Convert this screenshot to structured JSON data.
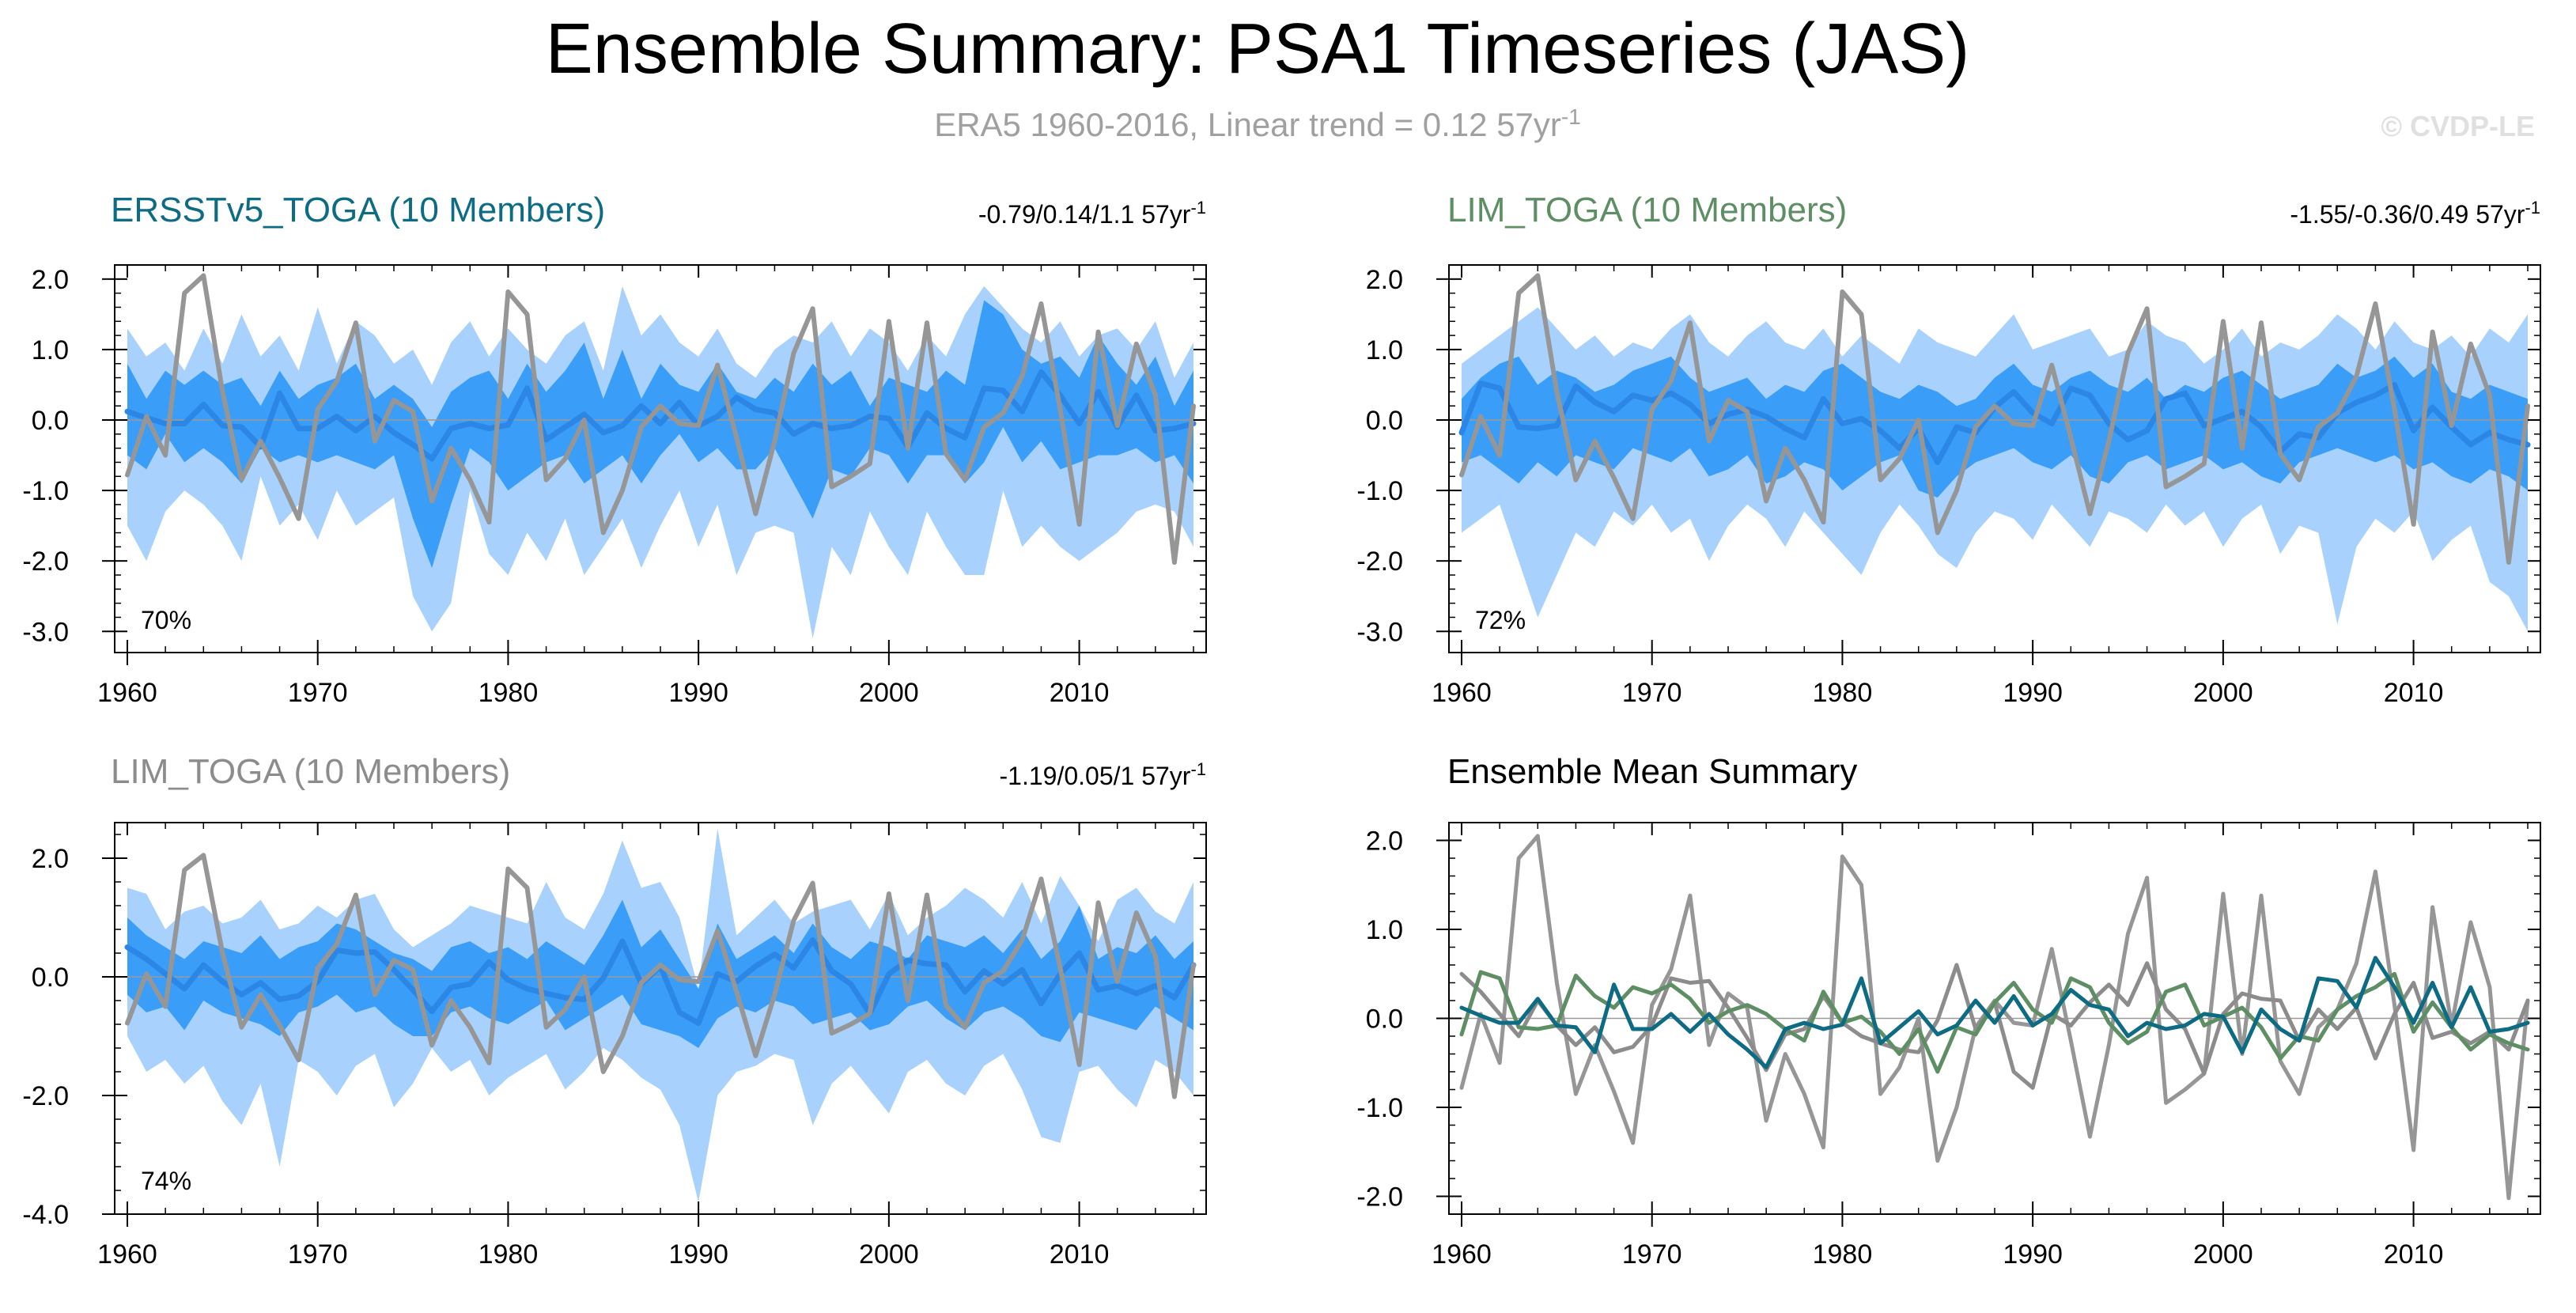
{
  "figure": {
    "title": "Ensemble Summary: PSA1 Timeseries (JAS)",
    "subtitle_main": "ERA5 1960-2016, Linear trend = 0.12 57yr",
    "subtitle_sup": "-1",
    "watermark": "© CVDP-LE"
  },
  "colors": {
    "band_outer": "#a8d2fd",
    "band_inner": "#3a9ef9",
    "ens_mean": "#2b86e6",
    "obs": "#969696",
    "ersst": "#0e6b84",
    "lim_green": "#5e8e63",
    "lim_gray": "#8c8c8c",
    "tick_text": "#000000"
  },
  "chart_data": [
    {
      "id": "ersst",
      "type": "area",
      "title": "ERSSTv5_TOGA (10 Members)",
      "title_color": "#0e6b84",
      "trend_main": "-0.79/0.14/1.1 57yr",
      "trend_sup": "-1",
      "pct": "70%",
      "years": [
        1960,
        2016
      ],
      "ylim": [
        -3.3,
        2.2
      ],
      "yticks": [
        2.0,
        1.0,
        0.0,
        -1.0,
        -2.0,
        -3.0
      ],
      "ytick_labels": [
        "2.0",
        "1.0",
        "0.0",
        "-1.0",
        "-2.0",
        "-3.0"
      ],
      "xticks": [
        1960,
        1970,
        1980,
        1990,
        2000,
        2010
      ],
      "xtick_labels": [
        "1960",
        "1970",
        "1980",
        "1990",
        "2000",
        "2010"
      ],
      "outer_upper": [
        1.3,
        0.9,
        1.1,
        0.7,
        1.3,
        0.8,
        1.5,
        0.9,
        1.2,
        0.7,
        1.6,
        0.8,
        1.4,
        1.2,
        0.8,
        1.0,
        0.5,
        1.1,
        1.4,
        0.9,
        1.3,
        1.0,
        0.8,
        1.2,
        1.4,
        0.7,
        1.9,
        1.2,
        1.5,
        1.1,
        0.9,
        1.3,
        0.8,
        0.6,
        1.0,
        1.2,
        1.1,
        1.4,
        0.9,
        1.3,
        1.1,
        0.7,
        1.2,
        0.9,
        1.5,
        1.9,
        1.6,
        1.3,
        1.1,
        1.4,
        0.9,
        1.2,
        1.3,
        1.0,
        1.4,
        0.6,
        1.1
      ],
      "outer_lower": [
        -1.5,
        -2.0,
        -1.3,
        -1.0,
        -1.2,
        -1.5,
        -2.0,
        -0.8,
        -1.5,
        -1.2,
        -1.7,
        -1.0,
        -1.5,
        -1.3,
        -1.1,
        -2.5,
        -3.0,
        -2.6,
        -1.0,
        -1.9,
        -2.2,
        -1.6,
        -2.0,
        -1.4,
        -2.2,
        -1.8,
        -1.4,
        -2.1,
        -1.5,
        -1.0,
        -1.8,
        -1.2,
        -2.2,
        -1.6,
        -1.5,
        -1.6,
        -3.1,
        -1.8,
        -2.2,
        -1.3,
        -1.8,
        -2.2,
        -1.3,
        -1.8,
        -2.2,
        -2.2,
        -1.0,
        -1.8,
        -1.5,
        -1.8,
        -2.0,
        -1.8,
        -1.6,
        -1.3,
        -1.2,
        -1.3,
        -1.8
      ],
      "inner_upper": [
        0.8,
        0.3,
        0.7,
        0.5,
        0.7,
        0.5,
        0.6,
        0.2,
        0.7,
        0.3,
        0.5,
        0.6,
        0.8,
        0.3,
        0.5,
        0.3,
        -0.1,
        0.4,
        0.6,
        0.7,
        0.3,
        0.8,
        0.4,
        0.7,
        1.1,
        0.3,
        1.0,
        0.3,
        0.8,
        0.5,
        0.4,
        0.8,
        0.4,
        0.3,
        0.6,
        0.4,
        0.8,
        0.5,
        0.7,
        0.2,
        0.6,
        0.5,
        0.4,
        0.7,
        0.5,
        1.7,
        1.5,
        1.0,
        0.8,
        0.9,
        0.6,
        1.2,
        0.8,
        0.5,
        0.9,
        0.2,
        0.7
      ],
      "inner_lower": [
        -0.5,
        -0.7,
        -0.2,
        -0.6,
        -0.4,
        -0.6,
        -0.9,
        -0.4,
        -0.6,
        -0.5,
        -0.6,
        -0.5,
        -0.6,
        -0.7,
        -0.5,
        -1.4,
        -2.1,
        -1.2,
        -0.4,
        -0.6,
        -1.0,
        -0.8,
        -0.6,
        -0.5,
        -0.9,
        -0.7,
        -0.5,
        -0.9,
        -0.5,
        -0.2,
        -0.6,
        -0.4,
        -0.7,
        -0.7,
        -0.4,
        -0.9,
        -1.4,
        -0.7,
        -0.8,
        -0.4,
        -0.5,
        -0.9,
        -0.5,
        -0.5,
        -0.9,
        -0.6,
        -0.1,
        -0.6,
        -0.3,
        -0.7,
        -0.6,
        -0.5,
        -0.5,
        -0.4,
        -0.6,
        -0.5,
        -0.9
      ],
      "ens_mean": [
        0.12,
        0.03,
        -0.05,
        -0.05,
        0.22,
        -0.08,
        -0.1,
        -0.38,
        0.38,
        -0.12,
        -0.12,
        0.05,
        -0.15,
        0.05,
        -0.18,
        -0.35,
        -0.55,
        -0.12,
        -0.05,
        -0.12,
        -0.07,
        0.45,
        -0.28,
        -0.1,
        0.08,
        -0.18,
        -0.08,
        0.2,
        -0.05,
        0.25,
        -0.08,
        0.05,
        0.32,
        0.15,
        0.1,
        -0.2,
        -0.05,
        -0.12,
        -0.08,
        0.05,
        0.02,
        -0.38,
        0.1,
        -0.12,
        -0.25,
        0.45,
        0.42,
        0.12,
        0.68,
        0.35,
        -0.05,
        0.4,
        -0.1,
        0.35,
        -0.15,
        -0.12,
        -0.05
      ]
    },
    {
      "id": "lim_green",
      "type": "area",
      "title": "LIM_TOGA (10 Members)",
      "title_color": "#5e8e63",
      "trend_main": "-1.55/-0.36/0.49 57yr",
      "trend_sup": "-1",
      "pct": "72%",
      "years": [
        1960,
        2016
      ],
      "ylim": [
        -3.3,
        2.2
      ],
      "yticks": [
        2.0,
        1.0,
        0.0,
        -1.0,
        -2.0,
        -3.0
      ],
      "ytick_labels": [
        "2.0",
        "1.0",
        "0.0",
        "-1.0",
        "-2.0",
        "-3.0"
      ],
      "xticks": [
        1960,
        1970,
        1980,
        1990,
        2000,
        2010
      ],
      "xtick_labels": [
        "1960",
        "1970",
        "1980",
        "1990",
        "2000",
        "2010"
      ],
      "outer_upper": [
        0.8,
        1.0,
        1.2,
        1.4,
        1.6,
        1.3,
        1.0,
        1.2,
        0.9,
        1.1,
        1.0,
        1.3,
        1.5,
        1.1,
        0.9,
        1.2,
        1.4,
        1.1,
        1.0,
        1.3,
        0.9,
        1.2,
        1.0,
        0.8,
        1.3,
        1.1,
        1.0,
        0.9,
        1.2,
        1.5,
        1.0,
        1.1,
        1.2,
        1.3,
        0.9,
        1.0,
        1.4,
        1.2,
        1.1,
        0.8,
        1.0,
        1.3,
        0.9,
        1.1,
        1.0,
        1.2,
        1.5,
        1.3,
        1.0,
        1.4,
        1.1,
        1.0,
        1.2,
        0.9,
        1.3,
        1.1,
        1.5
      ],
      "outer_lower": [
        -1.6,
        -1.4,
        -1.2,
        -2.0,
        -2.8,
        -2.2,
        -1.6,
        -1.8,
        -1.3,
        -1.5,
        -1.2,
        -1.6,
        -1.4,
        -2.0,
        -1.5,
        -1.2,
        -1.4,
        -1.8,
        -1.3,
        -1.6,
        -1.9,
        -2.2,
        -1.6,
        -1.2,
        -1.5,
        -1.9,
        -2.1,
        -1.6,
        -1.3,
        -1.4,
        -1.7,
        -1.2,
        -1.5,
        -1.8,
        -1.3,
        -1.4,
        -1.6,
        -1.2,
        -1.5,
        -1.3,
        -1.8,
        -1.4,
        -1.2,
        -1.9,
        -1.5,
        -1.6,
        -2.9,
        -1.8,
        -1.4,
        -1.6,
        -1.3,
        -2.0,
        -1.7,
        -1.5,
        -2.3,
        -2.5,
        -3.0
      ],
      "inner_upper": [
        0.3,
        0.6,
        0.8,
        0.9,
        0.5,
        0.7,
        0.6,
        0.4,
        0.5,
        0.7,
        0.8,
        0.9,
        0.6,
        0.4,
        0.5,
        0.6,
        0.3,
        0.5,
        0.4,
        0.7,
        0.8,
        0.6,
        0.4,
        0.3,
        0.5,
        0.4,
        0.2,
        0.3,
        0.6,
        0.8,
        0.5,
        0.4,
        0.6,
        0.7,
        0.5,
        0.4,
        0.6,
        0.3,
        0.5,
        0.4,
        0.6,
        0.7,
        0.5,
        0.3,
        0.4,
        0.5,
        0.8,
        0.6,
        0.7,
        0.9,
        0.6,
        0.8,
        0.4,
        0.3,
        0.5,
        0.4,
        0.3
      ],
      "inner_lower": [
        -0.6,
        -0.5,
        -0.7,
        -0.9,
        -0.6,
        -0.8,
        -0.5,
        -0.6,
        -0.7,
        -0.4,
        -0.5,
        -0.6,
        -0.4,
        -0.8,
        -0.7,
        -0.5,
        -0.9,
        -0.8,
        -0.6,
        -0.7,
        -1.0,
        -0.8,
        -0.6,
        -0.5,
        -1.0,
        -1.1,
        -0.8,
        -0.6,
        -0.5,
        -0.4,
        -0.6,
        -0.7,
        -0.5,
        -0.8,
        -0.9,
        -0.6,
        -0.5,
        -0.7,
        -0.6,
        -0.5,
        -0.7,
        -0.6,
        -0.8,
        -0.9,
        -0.6,
        -0.5,
        -0.4,
        -0.5,
        -0.6,
        -0.5,
        -0.7,
        -0.6,
        -0.8,
        -0.9,
        -0.7,
        -0.8,
        -1.0
      ],
      "ens_mean": [
        -0.18,
        0.52,
        0.45,
        -0.1,
        -0.12,
        -0.08,
        0.48,
        0.25,
        0.12,
        0.35,
        0.28,
        0.38,
        0.22,
        -0.05,
        0.08,
        0.15,
        0.05,
        -0.12,
        -0.25,
        0.3,
        -0.05,
        0.02,
        -0.15,
        -0.4,
        -0.12,
        -0.6,
        -0.1,
        -0.18,
        0.18,
        0.4,
        0.1,
        -0.05,
        0.45,
        0.35,
        -0.05,
        -0.28,
        -0.15,
        0.3,
        0.38,
        -0.08,
        0.02,
        0.12,
        -0.1,
        -0.45,
        -0.2,
        -0.25,
        0.1,
        0.25,
        0.35,
        0.5,
        -0.15,
        0.18,
        -0.1,
        -0.35,
        -0.18,
        -0.28,
        -0.35
      ]
    },
    {
      "id": "lim_gray",
      "type": "area",
      "title": "LIM_TOGA (10 Members)",
      "title_color": "#8c8c8c",
      "trend_main": "-1.19/0.05/1 57yr",
      "trend_sup": "-1",
      "pct": "74%",
      "years": [
        1960,
        2016
      ],
      "ylim": [
        -4.0,
        2.6
      ],
      "yticks": [
        2.0,
        0.0,
        -2.0,
        -4.0
      ],
      "ytick_labels": [
        "2.0",
        "0.0",
        "-2.0",
        "-4.0"
      ],
      "xticks": [
        1960,
        1970,
        1980,
        1990,
        2000,
        2010
      ],
      "xtick_labels": [
        "1960",
        "1970",
        "1980",
        "1990",
        "2000",
        "2010"
      ],
      "outer_upper": [
        1.5,
        1.4,
        0.8,
        1.1,
        1.2,
        0.9,
        1.0,
        1.3,
        0.8,
        0.9,
        1.2,
        1.0,
        1.3,
        1.4,
        0.8,
        0.5,
        0.7,
        0.9,
        1.2,
        1.1,
        1.0,
        0.9,
        1.6,
        1.0,
        0.8,
        1.4,
        2.3,
        1.5,
        1.6,
        1.0,
        -0.2,
        2.5,
        0.7,
        1.0,
        1.3,
        0.9,
        1.1,
        1.2,
        1.3,
        0.8,
        1.4,
        0.7,
        1.0,
        1.2,
        1.5,
        1.3,
        1.0,
        1.6,
        0.9,
        1.7,
        1.2,
        0.6,
        1.3,
        1.5,
        1.1,
        0.9,
        1.6
      ],
      "outer_lower": [
        -1.0,
        -1.6,
        -1.4,
        -1.8,
        -1.5,
        -2.1,
        -2.5,
        -1.8,
        -3.2,
        -1.4,
        -1.6,
        -2.0,
        -1.5,
        -1.3,
        -2.2,
        -1.8,
        -1.2,
        -1.6,
        -1.4,
        -2.0,
        -1.7,
        -1.5,
        -1.3,
        -1.9,
        -1.6,
        -1.2,
        -1.4,
        -1.7,
        -1.9,
        -2.5,
        -3.8,
        -2.0,
        -1.6,
        -1.5,
        -1.3,
        -1.4,
        -2.5,
        -1.8,
        -1.5,
        -1.9,
        -2.3,
        -1.6,
        -1.4,
        -1.8,
        -2.0,
        -1.5,
        -1.3,
        -1.9,
        -2.7,
        -2.8,
        -1.6,
        -1.5,
        -1.9,
        -2.2,
        -1.4,
        -1.6,
        -2.0
      ],
      "inner_upper": [
        1.0,
        0.7,
        0.5,
        0.3,
        0.6,
        0.5,
        0.4,
        0.7,
        0.3,
        0.5,
        0.6,
        0.9,
        0.8,
        0.6,
        0.4,
        0.3,
        0.1,
        0.5,
        0.6,
        0.4,
        0.5,
        0.3,
        0.6,
        0.4,
        0.2,
        0.7,
        1.3,
        0.5,
        0.8,
        0.3,
        -0.2,
        0.9,
        0.3,
        0.5,
        0.7,
        0.4,
        0.9,
        0.5,
        0.3,
        0.6,
        0.5,
        0.3,
        0.7,
        0.6,
        0.5,
        0.7,
        0.4,
        0.8,
        0.3,
        0.6,
        1.2,
        0.3,
        0.5,
        0.4,
        0.7,
        0.3,
        0.6
      ],
      "inner_lower": [
        -0.3,
        -0.6,
        -0.5,
        -0.9,
        -0.4,
        -0.6,
        -0.7,
        -0.8,
        -1.0,
        -0.6,
        -0.5,
        -0.3,
        -0.6,
        -0.5,
        -0.8,
        -1.0,
        -1.0,
        -0.6,
        -0.5,
        -0.7,
        -0.8,
        -0.6,
        -0.4,
        -0.9,
        -0.7,
        -0.5,
        -0.3,
        -0.8,
        -0.9,
        -1.0,
        -1.2,
        -0.7,
        -0.5,
        -0.6,
        -0.4,
        -0.5,
        -0.8,
        -0.7,
        -0.6,
        -0.9,
        -0.8,
        -0.5,
        -0.4,
        -0.7,
        -0.9,
        -0.6,
        -0.5,
        -0.7,
        -1.0,
        -1.1,
        -0.6,
        -0.7,
        -0.8,
        -0.9,
        -0.5,
        -0.7,
        -0.9
      ],
      "ens_mean": [
        0.5,
        0.3,
        0.05,
        -0.2,
        0.2,
        -0.08,
        -0.3,
        -0.1,
        -0.38,
        -0.32,
        -0.08,
        0.45,
        0.4,
        0.42,
        0.12,
        -0.22,
        -0.58,
        -0.18,
        -0.12,
        0.25,
        -0.05,
        -0.2,
        -0.28,
        -0.35,
        -0.38,
        -0.02,
        0.6,
        -0.12,
        0.18,
        -0.6,
        -0.78,
        0.05,
        -0.08,
        0.18,
        0.38,
        0.15,
        0.62,
        0.1,
        -0.12,
        -0.62,
        0.05,
        0.28,
        0.22,
        0.2,
        -0.25,
        0.1,
        -0.12,
        0.12,
        -0.45,
        0.05,
        0.4,
        -0.22,
        -0.15,
        -0.28,
        -0.15,
        -0.35,
        0.2
      ]
    },
    {
      "id": "mean_summary",
      "type": "line",
      "title": "Ensemble Mean Summary",
      "title_color": "#000000",
      "years": [
        1960,
        2016
      ],
      "ylim": [
        -2.2,
        2.2
      ],
      "yticks": [
        2.0,
        1.0,
        0.0,
        -1.0,
        -2.0
      ],
      "ytick_labels": [
        "2.0",
        "1.0",
        "0.0",
        "-1.0",
        "-2.0"
      ],
      "xticks": [
        1960,
        1970,
        1980,
        1990,
        2000,
        2010
      ],
      "xtick_labels": [
        "1960",
        "1970",
        "1980",
        "1990",
        "2000",
        "2010"
      ]
    }
  ],
  "observed": [
    -0.78,
    0.05,
    -0.5,
    1.8,
    2.05,
    0.4,
    -0.85,
    -0.3,
    -0.82,
    -1.4,
    0.15,
    0.55,
    1.38,
    -0.3,
    0.28,
    0.12,
    -1.15,
    -0.4,
    -0.85,
    -1.45,
    1.82,
    1.5,
    -0.85,
    -0.55,
    0.0,
    -1.6,
    -1.0,
    -0.1,
    0.2,
    -0.05,
    -0.08,
    0.78,
    -0.25,
    -1.33,
    -0.3,
    0.95,
    1.58,
    -0.95,
    -0.8,
    -0.62,
    1.4,
    -0.4,
    1.38,
    -0.48,
    -0.85,
    -0.1,
    0.1,
    0.62,
    1.65,
    0.15,
    -1.48,
    1.25,
    -0.08,
    1.08,
    0.35,
    -2.02,
    0.2
  ]
}
